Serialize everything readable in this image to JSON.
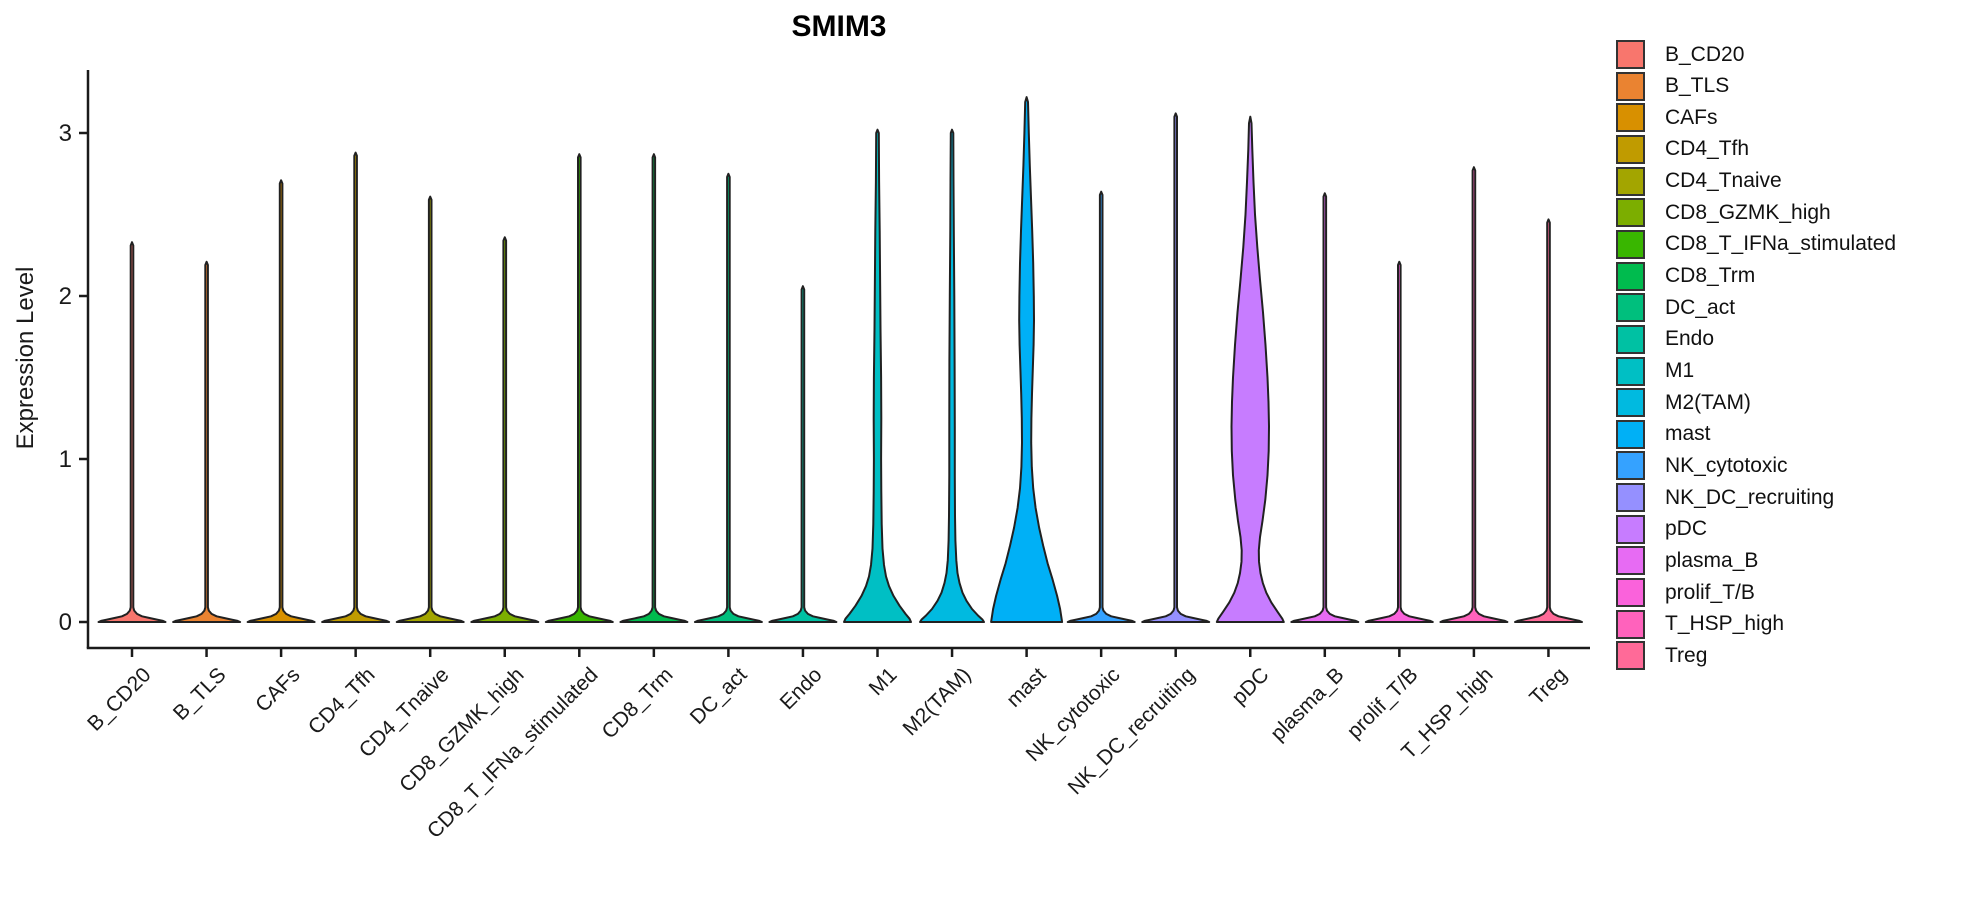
{
  "chart_data": {
    "type": "violin",
    "title": "SMIM3",
    "ylabel": "Expression Level",
    "xlabel": "",
    "yticks": [
      0,
      1,
      2,
      3
    ],
    "ylim": [
      -0.17,
      3.39
    ],
    "grid": false,
    "legend_position": "right",
    "categories": [
      "B_CD20",
      "B_TLS",
      "CAFs",
      "CD4_Tfh",
      "CD4_Tnaive",
      "CD8_GZMK_high",
      "CD8_T_IFNa_stimulated",
      "CD8_Trm",
      "DC_act",
      "Endo",
      "M1",
      "M2(TAM)",
      "mast",
      "NK_cytotoxic",
      "NK_DC_recruiting",
      "pDC",
      "plasma_B",
      "prolif_T/B",
      "T_HSP_high",
      "Treg"
    ],
    "series": [
      {
        "name": "B_CD20",
        "color": "#F8766D",
        "max_expression": 2.33,
        "shape": "spike"
      },
      {
        "name": "B_TLS",
        "color": "#EA8331",
        "max_expression": 2.21,
        "shape": "spike"
      },
      {
        "name": "CAFs",
        "color": "#D89000",
        "max_expression": 2.71,
        "shape": "spike"
      },
      {
        "name": "CD4_Tfh",
        "color": "#C09B00",
        "max_expression": 2.88,
        "shape": "spike"
      },
      {
        "name": "CD4_Tnaive",
        "color": "#A3A500",
        "max_expression": 2.61,
        "shape": "spike"
      },
      {
        "name": "CD8_GZMK_high",
        "color": "#7CAE00",
        "max_expression": 2.36,
        "shape": "spike"
      },
      {
        "name": "CD8_T_IFNa_stimulated",
        "color": "#39B600",
        "max_expression": 2.87,
        "shape": "spike"
      },
      {
        "name": "CD8_Trm",
        "color": "#00BB4E",
        "max_expression": 2.87,
        "shape": "spike"
      },
      {
        "name": "DC_act",
        "color": "#00BF7D",
        "max_expression": 2.75,
        "shape": "spike"
      },
      {
        "name": "Endo",
        "color": "#00C1A3",
        "max_expression": 2.06,
        "shape": "spike"
      },
      {
        "name": "M1",
        "color": "#00BFC4",
        "max_expression": 3.02,
        "shape": "body",
        "profile": [
          [
            3.02,
            0
          ],
          [
            3.0,
            1.3
          ],
          [
            2.7,
            1.6
          ],
          [
            2.4,
            2.2
          ],
          [
            2.1,
            2.6
          ],
          [
            1.8,
            3.0
          ],
          [
            1.5,
            3.6
          ],
          [
            1.25,
            3.8
          ],
          [
            1.0,
            3.6
          ],
          [
            0.8,
            3.8
          ],
          [
            0.6,
            4.2
          ],
          [
            0.45,
            5.0
          ],
          [
            0.35,
            6.5
          ],
          [
            0.28,
            8.5
          ],
          [
            0.22,
            11.5
          ],
          [
            0.16,
            16
          ],
          [
            0.1,
            22
          ],
          [
            0.05,
            28
          ],
          [
            0.02,
            32
          ],
          [
            0,
            33.5
          ]
        ]
      },
      {
        "name": "M2(TAM)",
        "color": "#00BAE0",
        "max_expression": 3.02,
        "shape": "body",
        "profile": [
          [
            3.02,
            0
          ],
          [
            3.0,
            1.3
          ],
          [
            2.7,
            1.5
          ],
          [
            2.4,
            1.8
          ],
          [
            2.0,
            2.2
          ],
          [
            1.6,
            2.6
          ],
          [
            1.2,
            2.8
          ],
          [
            0.9,
            2.8
          ],
          [
            0.65,
            3.0
          ],
          [
            0.5,
            3.4
          ],
          [
            0.38,
            4.2
          ],
          [
            0.3,
            5.5
          ],
          [
            0.24,
            7.5
          ],
          [
            0.18,
            10.5
          ],
          [
            0.13,
            14.5
          ],
          [
            0.08,
            20
          ],
          [
            0.04,
            26
          ],
          [
            0.015,
            30.5
          ],
          [
            0,
            32
          ]
        ]
      },
      {
        "name": "mast",
        "color": "#00B0F6",
        "max_expression": 3.22,
        "shape": "body",
        "profile": [
          [
            3.22,
            0
          ],
          [
            3.19,
            1.4
          ],
          [
            3.0,
            2.2
          ],
          [
            2.8,
            3.2
          ],
          [
            2.6,
            4.4
          ],
          [
            2.4,
            5.6
          ],
          [
            2.2,
            6.6
          ],
          [
            2.0,
            7.2
          ],
          [
            1.85,
            7.4
          ],
          [
            1.7,
            7.0
          ],
          [
            1.55,
            6.2
          ],
          [
            1.4,
            5.4
          ],
          [
            1.25,
            4.8
          ],
          [
            1.1,
            4.6
          ],
          [
            0.95,
            5.2
          ],
          [
            0.82,
            6.6
          ],
          [
            0.7,
            9.0
          ],
          [
            0.58,
            12.5
          ],
          [
            0.47,
            16.5
          ],
          [
            0.36,
            21
          ],
          [
            0.26,
            26
          ],
          [
            0.16,
            30.5
          ],
          [
            0.08,
            33.5
          ],
          [
            0,
            35.5
          ]
        ]
      },
      {
        "name": "NK_cytotoxic",
        "color": "#35A2FF",
        "max_expression": 2.64,
        "shape": "spike"
      },
      {
        "name": "NK_DC_recruiting",
        "color": "#9590FF",
        "max_expression": 3.12,
        "shape": "spike"
      },
      {
        "name": "pDC",
        "color": "#C77CFF",
        "max_expression": 3.1,
        "shape": "body",
        "profile": [
          [
            3.1,
            0
          ],
          [
            3.06,
            1.3
          ],
          [
            2.9,
            2.0
          ],
          [
            2.7,
            3.2
          ],
          [
            2.5,
            4.8
          ],
          [
            2.3,
            7.0
          ],
          [
            2.1,
            9.8
          ],
          [
            1.9,
            12.8
          ],
          [
            1.7,
            15.2
          ],
          [
            1.5,
            17.2
          ],
          [
            1.35,
            18.3
          ],
          [
            1.2,
            18.8
          ],
          [
            1.05,
            18.4
          ],
          [
            0.9,
            17.2
          ],
          [
            0.75,
            15.0
          ],
          [
            0.62,
            12.2
          ],
          [
            0.52,
            9.8
          ],
          [
            0.44,
            8.6
          ],
          [
            0.37,
            8.8
          ],
          [
            0.3,
            10.2
          ],
          [
            0.24,
            12.5
          ],
          [
            0.18,
            16
          ],
          [
            0.12,
            21
          ],
          [
            0.06,
            27.5
          ],
          [
            0.02,
            32
          ],
          [
            0,
            33.5
          ]
        ]
      },
      {
        "name": "plasma_B",
        "color": "#E76BF3",
        "max_expression": 2.63,
        "shape": "spike"
      },
      {
        "name": "prolif_T/B",
        "color": "#FA62DB",
        "max_expression": 2.21,
        "shape": "spike"
      },
      {
        "name": "T_HSP_high",
        "color": "#FF62BC",
        "max_expression": 2.79,
        "shape": "spike"
      },
      {
        "name": "Treg",
        "color": "#FF6A98",
        "max_expression": 2.47,
        "shape": "spike"
      }
    ],
    "legend": [
      "B_CD20",
      "B_TLS",
      "CAFs",
      "CD4_Tfh",
      "CD4_Tnaive",
      "CD8_GZMK_high",
      "CD8_T_IFNa_stimulated",
      "CD8_Trm",
      "DC_act",
      "Endo",
      "M1",
      "M2(TAM)",
      "mast",
      "NK_cytotoxic",
      "NK_DC_recruiting",
      "pDC",
      "plasma_B",
      "prolif_T/B",
      "T_HSP_high",
      "Treg"
    ],
    "axis_color": "#1a1a1a",
    "violin_outline_color": "#212121"
  }
}
